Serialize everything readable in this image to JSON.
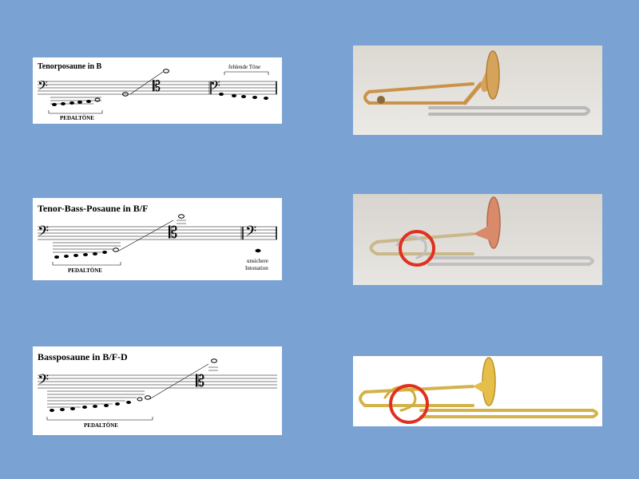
{
  "slide": {
    "background": "#7aa3d3"
  },
  "scores": [
    {
      "title": "Tenorposaune in B",
      "pedal_label": "PEDALTÖNE",
      "missing_label": "fehlende Töne"
    },
    {
      "title": "Tenor-Bass-Posaune in B/F",
      "pedal_label": "PEDALTÖNE",
      "intonation_line1": "unsichere",
      "intonation_line2": "Intonation"
    },
    {
      "title": "Bassposaune in B/F-D",
      "pedal_label": "PEDALTÖNE"
    }
  ],
  "photos": [
    {
      "subject": "tenor trombone",
      "bell_color": "#d6a35a"
    },
    {
      "subject": "tenor-bass trombone with F attachment",
      "bell_color": "#d88a6a",
      "highlight": "#e03020"
    },
    {
      "subject": "bass trombone with F-D valves",
      "bell_color": "#e6be4a",
      "highlight": "#e03020"
    }
  ]
}
